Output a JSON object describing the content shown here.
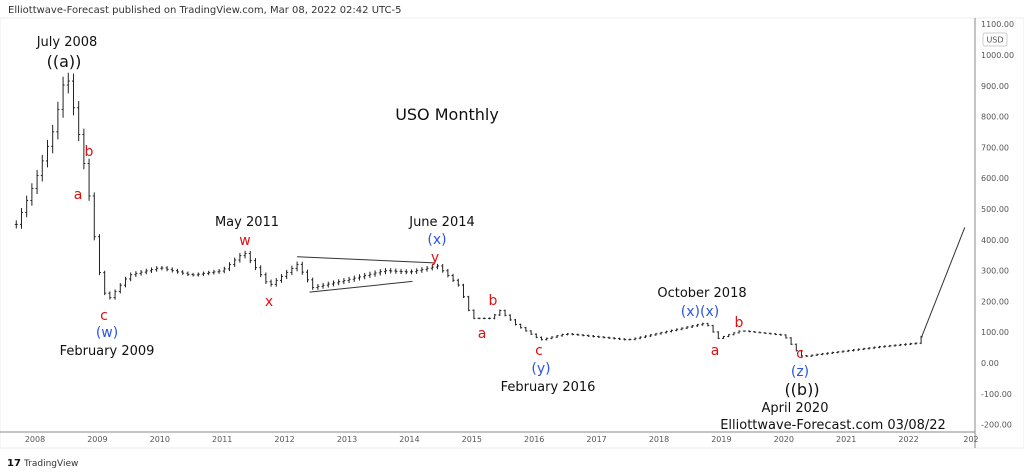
{
  "header": {
    "published": "Elliottwave-Forecast published on TradingView.com, Mar 08, 2022 02:42 UTC-5"
  },
  "footer": {
    "logo_text": "TradingView"
  },
  "chart_data": {
    "type": "ohlc",
    "title": "USO Monthly",
    "currency": "USD",
    "ylim": [
      -200,
      1100
    ],
    "y_ticks": [
      "1100.00",
      "1000.00",
      "900.00",
      "800.00",
      "700.00",
      "600.00",
      "500.00",
      "400.00",
      "300.00",
      "200.00",
      "100.00",
      "0.00",
      "-100.00",
      "-200.00"
    ],
    "x_ticks": [
      "2008",
      "2009",
      "2010",
      "2011",
      "2012",
      "2013",
      "2014",
      "2015",
      "2016",
      "2017",
      "2018",
      "2019",
      "2020",
      "2021",
      "2022",
      "202"
    ],
    "grid": false,
    "price_path": [
      [
        2007.7,
        450
      ],
      [
        2008.0,
        590
      ],
      [
        2008.3,
        760
      ],
      [
        2008.5,
        950
      ],
      [
        2008.75,
        690
      ],
      [
        2008.9,
        500
      ],
      [
        2009.0,
        320
      ],
      [
        2009.15,
        200
      ],
      [
        2009.5,
        285
      ],
      [
        2010.0,
        310
      ],
      [
        2010.5,
        285
      ],
      [
        2011.0,
        300
      ],
      [
        2011.35,
        360
      ],
      [
        2011.75,
        250
      ],
      [
        2012.2,
        320
      ],
      [
        2012.45,
        245
      ],
      [
        2013.0,
        270
      ],
      [
        2013.6,
        300
      ],
      [
        2014.0,
        295
      ],
      [
        2014.45,
        315
      ],
      [
        2014.8,
        250
      ],
      [
        2015.0,
        145
      ],
      [
        2015.3,
        145
      ],
      [
        2015.45,
        170
      ],
      [
        2015.7,
        125
      ],
      [
        2016.1,
        75
      ],
      [
        2016.5,
        95
      ],
      [
        2017.5,
        75
      ],
      [
        2018.75,
        130
      ],
      [
        2018.95,
        80
      ],
      [
        2019.3,
        105
      ],
      [
        2020.0,
        90
      ],
      [
        2020.2,
        40
      ],
      [
        2020.3,
        20
      ],
      [
        2020.5,
        27
      ],
      [
        2021.5,
        52
      ],
      [
        2022.15,
        65
      ],
      [
        2022.2,
        85
      ]
    ],
    "projection": [
      [
        2022.2,
        80
      ],
      [
        2022.9,
        440
      ]
    ],
    "triangle": {
      "upper": [
        [
          2012.2,
          345
        ],
        [
          2014.4,
          325
        ]
      ],
      "lower": [
        [
          2012.4,
          230
        ],
        [
          2014.05,
          265
        ]
      ]
    },
    "annotations": {
      "july2008": "July 2008",
      "a_big": "((a))",
      "b1": "b",
      "a1": "a",
      "c1": "c",
      "w_blue": "(w)",
      "feb2009": "February 2009",
      "may2011": "May 2011",
      "w_red": "w",
      "x_red": "x",
      "june2014": "June 2014",
      "x_blue": "(x)",
      "y_red": "y",
      "b2": "b",
      "a2": "a",
      "c2": "c",
      "y_blue": "(y)",
      "feb2016": "February 2016",
      "oct2018": "October 2018",
      "xx_blue": "(x)(x)",
      "a3": "a",
      "b3": "b",
      "c3": "c",
      "z_blue": "(z)",
      "b_big": "((b))",
      "apr2020": "April 2020",
      "watermark": "Elliottwave-Forecast.com 03/08/22"
    }
  }
}
